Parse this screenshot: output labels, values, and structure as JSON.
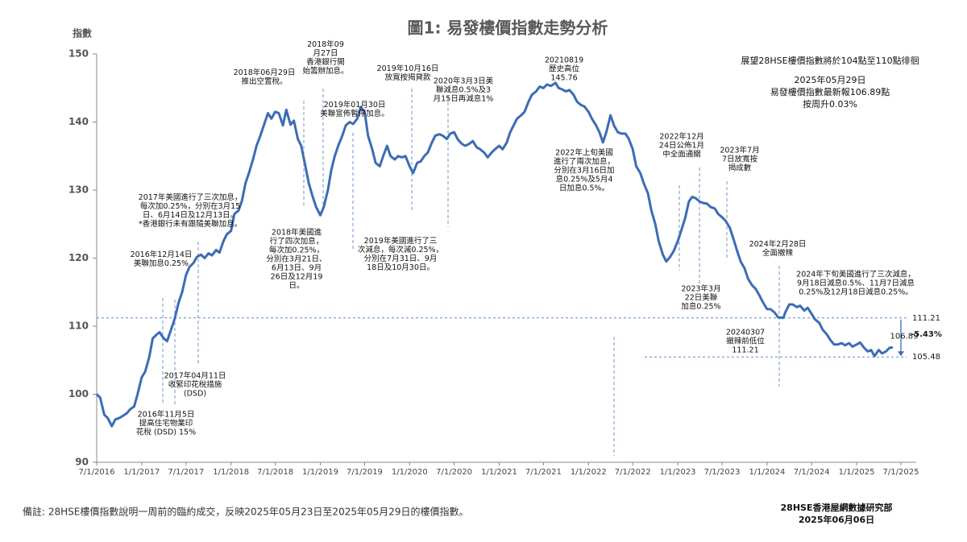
{
  "chart_data": {
    "type": "line",
    "title": "圖1: 易發樓價指數走勢分析",
    "y_label": "指數",
    "color": "#3c6cb4",
    "x": [
      "7/1/2016",
      "7/15/2016",
      "8/1/2016",
      "8/15/2016",
      "9/1/2016",
      "9/15/2016",
      "10/1/2016",
      "10/15/2016",
      "11/1/2016",
      "11/15/2016",
      "12/1/2016",
      "12/15/2016",
      "1/1/2017",
      "1/15/2017",
      "2/1/2017",
      "2/15/2017",
      "3/1/2017",
      "3/15/2017",
      "4/1/2017",
      "4/15/2017",
      "5/1/2017",
      "5/15/2017",
      "6/1/2017",
      "6/15/2017",
      "7/1/2017",
      "7/15/2017",
      "8/1/2017",
      "8/15/2017",
      "9/1/2017",
      "9/15/2017",
      "10/1/2017",
      "10/15/2017",
      "11/1/2017",
      "11/15/2017",
      "12/1/2017",
      "12/15/2017",
      "1/1/2018",
      "1/15/2018",
      "2/1/2018",
      "2/15/2018",
      "3/1/2018",
      "3/15/2018",
      "4/1/2018",
      "4/15/2018",
      "5/1/2018",
      "5/15/2018",
      "6/1/2018",
      "6/15/2018",
      "7/1/2018",
      "7/15/2018",
      "8/1/2018",
      "8/15/2018",
      "9/1/2018",
      "9/15/2018",
      "10/1/2018",
      "10/15/2018",
      "11/1/2018",
      "11/15/2018",
      "12/1/2018",
      "12/15/2018",
      "1/1/2019",
      "1/15/2019",
      "2/1/2019",
      "2/15/2019",
      "3/1/2019",
      "3/15/2019",
      "4/1/2019",
      "4/15/2019",
      "5/1/2019",
      "5/15/2019",
      "6/1/2019",
      "6/15/2019",
      "7/1/2019",
      "7/15/2019",
      "8/1/2019",
      "8/15/2019",
      "9/1/2019",
      "9/15/2019",
      "10/1/2019",
      "10/15/2019",
      "11/1/2019",
      "11/15/2019",
      "12/1/2019",
      "12/15/2019",
      "1/1/2020",
      "1/15/2020",
      "2/1/2020",
      "2/15/2020",
      "3/1/2020",
      "3/15/2020",
      "4/1/2020",
      "4/15/2020",
      "5/1/2020",
      "5/15/2020",
      "6/1/2020",
      "6/15/2020",
      "7/1/2020",
      "7/15/2020",
      "8/1/2020",
      "8/15/2020",
      "9/1/2020",
      "9/15/2020",
      "10/1/2020",
      "10/15/2020",
      "11/1/2020",
      "11/15/2020",
      "12/1/2020",
      "12/15/2020",
      "1/1/2021",
      "1/15/2021",
      "2/1/2021",
      "2/15/2021",
      "3/1/2021",
      "3/15/2021",
      "4/1/2021",
      "4/15/2021",
      "5/1/2021",
      "5/15/2021",
      "6/1/2021",
      "6/15/2021",
      "7/1/2021",
      "7/15/2021",
      "8/1/2021",
      "8/19/2021",
      "9/1/2021",
      "9/15/2021",
      "10/1/2021",
      "10/15/2021",
      "11/1/2021",
      "11/15/2021",
      "12/1/2021",
      "12/15/2021",
      "1/1/2022",
      "1/15/2022",
      "2/1/2022",
      "2/15/2022",
      "3/1/2022",
      "3/15/2022",
      "4/1/2022",
      "4/15/2022",
      "5/1/2022",
      "5/15/2022",
      "6/1/2022",
      "6/15/2022",
      "7/1/2022",
      "7/15/2022",
      "8/1/2022",
      "8/15/2022",
      "9/1/2022",
      "9/15/2022",
      "10/1/2022",
      "10/15/2022",
      "11/1/2022",
      "11/15/2022",
      "12/1/2022",
      "12/15/2022",
      "1/1/2023",
      "1/15/2023",
      "2/1/2023",
      "2/15/2023",
      "3/1/2023",
      "3/15/2023",
      "4/1/2023",
      "4/15/2023",
      "5/1/2023",
      "5/15/2023",
      "6/1/2023",
      "6/15/2023",
      "7/1/2023",
      "7/15/2023",
      "8/1/2023",
      "8/15/2023",
      "9/1/2023",
      "9/15/2023",
      "10/1/2023",
      "10/15/2023",
      "11/1/2023",
      "11/15/2023",
      "12/1/2023",
      "12/15/2023",
      "1/1/2024",
      "1/15/2024",
      "2/1/2024",
      "2/15/2024",
      "3/7/2024",
      "3/15/2024",
      "4/1/2024",
      "4/15/2024",
      "5/1/2024",
      "5/15/2024",
      "6/1/2024",
      "6/15/2024",
      "7/1/2024",
      "7/15/2024",
      "8/1/2024",
      "8/15/2024",
      "9/1/2024",
      "9/15/2024",
      "10/1/2024",
      "10/15/2024",
      "11/1/2024",
      "11/15/2024",
      "12/1/2024",
      "12/15/2024",
      "1/1/2025",
      "1/15/2025",
      "2/1/2025",
      "2/15/2025",
      "3/1/2025",
      "3/15/2025",
      "4/1/2025",
      "4/15/2025",
      "5/1/2025",
      "5/15/2025",
      "5/29/2025"
    ],
    "values": [
      100,
      99.5,
      97,
      96.5,
      95.3,
      96.3,
      96.5,
      96.8,
      97.2,
      97.8,
      98.2,
      100,
      102.5,
      103.3,
      105.5,
      108.2,
      108.7,
      109.1,
      108.2,
      107.8,
      109.5,
      111,
      113.5,
      115,
      117.5,
      118.7,
      119.3,
      120.2,
      120.5,
      120,
      120.7,
      120.4,
      121.2,
      120.8,
      122.5,
      123.5,
      124,
      126.5,
      127,
      128.5,
      131,
      132.5,
      134.5,
      136.5,
      138,
      139.5,
      141.3,
      140.5,
      141.5,
      141.3,
      139.5,
      141.8,
      139.6,
      140.2,
      137.5,
      136.5,
      133.5,
      131,
      129,
      127.5,
      126.3,
      127.5,
      130,
      133,
      135,
      136.5,
      138,
      139.5,
      140,
      139.7,
      140.5,
      142.2,
      141.5,
      138,
      136,
      134,
      133.5,
      135,
      136.5,
      135,
      134.5,
      135,
      134.8,
      135,
      133.5,
      132.5,
      134,
      134.2,
      135,
      135.5,
      137,
      138,
      138.2,
      138,
      137.5,
      138.3,
      138.5,
      137.5,
      136.8,
      136.5,
      136.8,
      137.2,
      136.3,
      136,
      135.5,
      134.8,
      135.5,
      136,
      136.5,
      136,
      137,
      138.5,
      139.5,
      140.5,
      141,
      141.5,
      143,
      144,
      144.5,
      145.2,
      145,
      145.5,
      145.3,
      145.76,
      145,
      144.8,
      144.5,
      144.7,
      144,
      143,
      142.5,
      142.3,
      141.5,
      140.5,
      139.5,
      138.5,
      137,
      138.5,
      141,
      139.5,
      138.5,
      138.3,
      138.3,
      137.5,
      136,
      133.5,
      132.5,
      131,
      129.5,
      127,
      125,
      122.5,
      120.5,
      119.5,
      120.2,
      121,
      122.5,
      124,
      126,
      128.3,
      129,
      128.8,
      128.3,
      128.1,
      128,
      127.5,
      127.3,
      126.5,
      126,
      125.5,
      124.5,
      123,
      121,
      119.5,
      118.5,
      117,
      116,
      115.5,
      114.5,
      113.5,
      112.5,
      112.5,
      112,
      111.3,
      111.21,
      112,
      113.2,
      113.2,
      112.8,
      113,
      112.3,
      112.7,
      111.8,
      111,
      110.5,
      109.5,
      108.8,
      108,
      107.3,
      107.3,
      107.5,
      107.2,
      107.5,
      107,
      107.3,
      107.6,
      106.8,
      106.3,
      106.5,
      105.6,
      106.5,
      106,
      106.3,
      106.8,
      106.89
    ],
    "xlim": [
      "7/1/2016",
      "8/31/2025"
    ],
    "xticks": [
      "7/1/2016",
      "1/1/2017",
      "7/1/2017",
      "1/1/2018",
      "7/1/2018",
      "1/1/2019",
      "7/1/2019",
      "1/1/2020",
      "7/1/2020",
      "1/1/2021",
      "7/1/2021",
      "1/1/2022",
      "7/1/2022",
      "1/1/2023",
      "7/1/2023",
      "1/1/2024",
      "7/1/2024",
      "1/1/2025",
      "7/1/2025"
    ],
    "ylim": [
      90,
      150
    ],
    "yticks": [
      90,
      100,
      110,
      120,
      130,
      140,
      150
    ],
    "grid": false,
    "reference_lines": [
      {
        "value": 111.21
      },
      {
        "value": 105.48
      }
    ],
    "change_label": "-5.43%",
    "outlook": [
      "展望28HSE樓價指數將於104點至110點徘徊",
      "2025年05月29日",
      "易發樓價指數最新報106.89點",
      "按周升0.03%"
    ],
    "annotations": [
      {
        "lines": [
          "2016年11月5日",
          "提高住宅物業印",
          "花稅 (DSD) 15%"
        ]
      },
      {
        "lines": [
          "2016年12月14日",
          "美聯加息0.25%"
        ]
      },
      {
        "lines": [
          "2017年美國進行了三次加息，",
          "每次加0.25%，分別在3月15",
          "日、6月14日及12月13日。",
          "*香港銀行未有跟隨美聯加息。"
        ]
      },
      {
        "lines": [
          "2017年04月11日",
          "收緊印花稅措施",
          "(DSD)"
        ]
      },
      {
        "lines": [
          "2018年06月29日",
          "推出空置稅。"
        ]
      },
      {
        "lines": [
          "2018年09",
          "月27日",
          "香港銀行開",
          "始籌辦加息。"
        ]
      },
      {
        "lines": [
          "2019年01月30日",
          "美聯宣佈暫停加息。"
        ]
      },
      {
        "lines": [
          "2018年美國進",
          "行了四次加息，",
          "每次加0.25%，",
          "分別在3月21日、",
          "6月13日、9月",
          "26日及12月19",
          "日。"
        ]
      },
      {
        "lines": [
          "2019年10月16日",
          "放寬按揭貸款"
        ]
      },
      {
        "lines": [
          "2020年3月3日美",
          "聯減息0.5%及3",
          "月15日再減息1%"
        ]
      },
      {
        "lines": [
          "2019年美國進行了三",
          "次減息，每次減0.25%，",
          "分別在7月31日、9月",
          "18日及10月30日。"
        ]
      },
      {
        "lines": [
          "20210819",
          "歷史高位",
          "145.76"
        ]
      },
      {
        "lines": [
          "2022年上旬美國",
          "進行了兩次加息，",
          "分別在3月16日加",
          "息0.25%及5月4",
          "日加息0.5%。"
        ]
      },
      {
        "lines": [
          "2022年12月",
          "24日公佈1月",
          "中全面通關"
        ]
      },
      {
        "lines": [
          "2023年7月",
          "7日放寬按",
          "揭成數"
        ]
      },
      {
        "lines": [
          "2023年3月",
          "22日美聯",
          "加息0.25%"
        ]
      },
      {
        "lines": [
          "2024年2月28日",
          "全面撤辣"
        ]
      },
      {
        "lines": [
          "20240307",
          "撤辣前低位",
          "111.21"
        ]
      },
      {
        "lines": [
          "2024年下旬美國進行了三次減息，",
          "9月18日減息0.5%、11月7日減息",
          "0.25%及12月18日減息0.25%。"
        ]
      }
    ],
    "footnote": "備註: 28HSE樓價指數說明一周前的臨約成交，反映2025年05月23日至2025年05月29日的樓價指數。",
    "source": [
      "28HSE香港屋網數據研究部",
      "2025年06月06日"
    ]
  }
}
